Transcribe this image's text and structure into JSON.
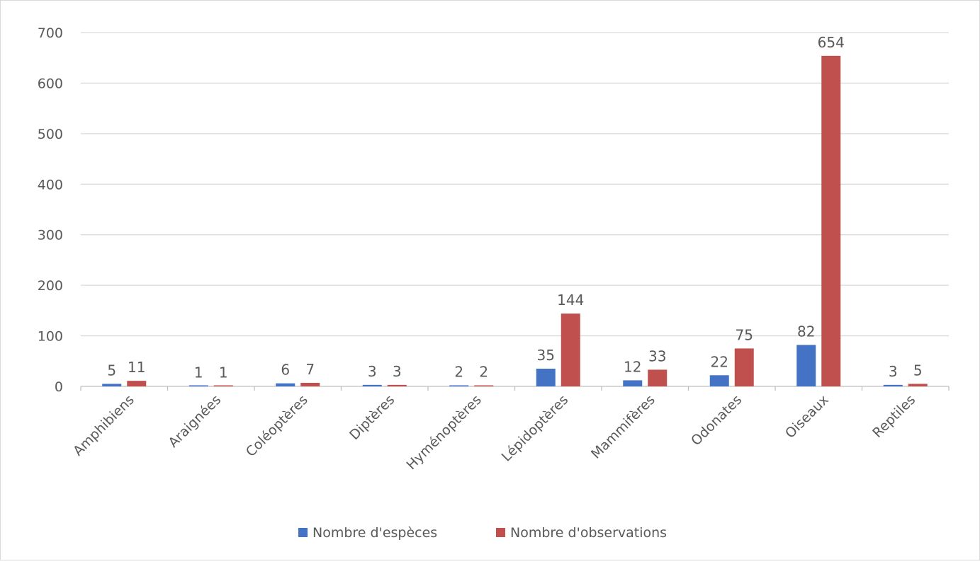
{
  "chart_data": {
    "type": "bar",
    "title": "",
    "xlabel": "",
    "ylabel": "",
    "ylim": [
      0,
      700
    ],
    "yticks": [
      0,
      100,
      200,
      300,
      400,
      500,
      600,
      700
    ],
    "grid": true,
    "legend_position": "bottom",
    "categories": [
      "Amphibiens",
      "Araignées",
      "Coléoptères",
      "Diptères",
      "Hyménoptères",
      "Lépidoptères",
      "Mammifères",
      "Odonates",
      "Oiseaux",
      "Reptiles"
    ],
    "series": [
      {
        "name": "Nombre d'espèces",
        "color": "#4472c4",
        "values": [
          5,
          1,
          6,
          3,
          2,
          35,
          12,
          22,
          82,
          3
        ]
      },
      {
        "name": "Nombre d'observations",
        "color": "#c0504d",
        "values": [
          11,
          1,
          7,
          3,
          2,
          144,
          33,
          75,
          654,
          5
        ]
      }
    ]
  }
}
